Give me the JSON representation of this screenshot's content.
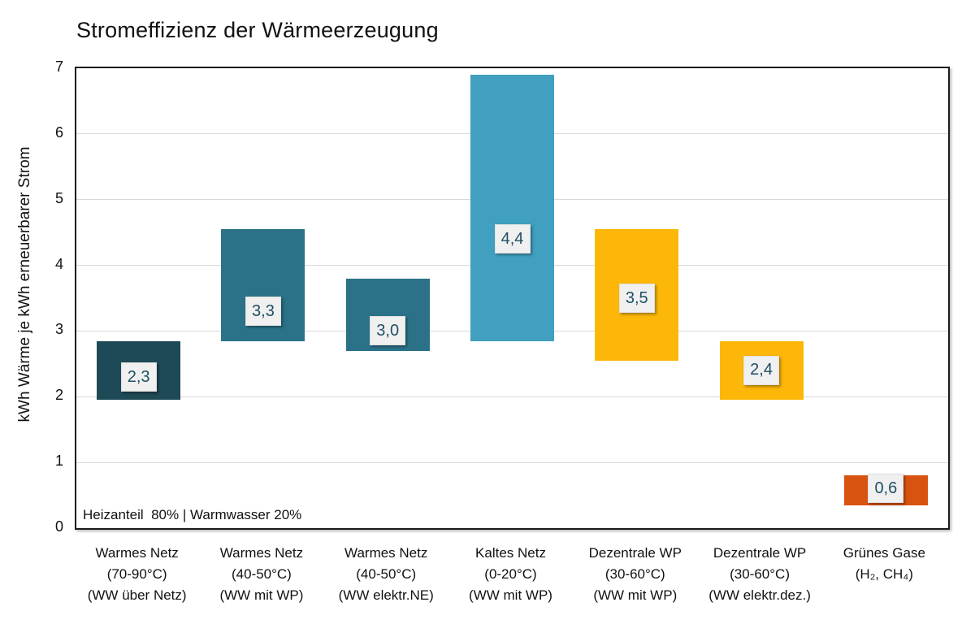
{
  "chart_data": {
    "type": "bar",
    "subtype": "floating-range-columns",
    "title": "Stromeffizienz der Wärmeerzeugung",
    "xlabel": "",
    "ylabel": "kWh Wärme je kWh erneuerbarer Strom",
    "ylim": [
      0,
      7
    ],
    "y_ticks": [
      0,
      1,
      2,
      3,
      4,
      5,
      6,
      7
    ],
    "grid": "horizontal",
    "legend": "none",
    "annotation": "Heizanteil  80% | Warmwasser 20%",
    "bars": [
      {
        "category_lines": [
          "Warmes Netz",
          "(70-90°C)",
          "(WW über Netz)"
        ],
        "range_low": 1.95,
        "range_high": 2.85,
        "value": 2.3,
        "value_label": "2,3",
        "color": "#1e4956"
      },
      {
        "category_lines": [
          "Warmes Netz",
          "(40-50°C)",
          "(WW mit WP)"
        ],
        "range_low": 2.85,
        "range_high": 4.55,
        "value": 3.3,
        "value_label": "3,3",
        "color": "#2b7289"
      },
      {
        "category_lines": [
          "Warmes Netz",
          "(40-50°C)",
          "(WW elektr.NE)"
        ],
        "range_low": 2.7,
        "range_high": 3.8,
        "value": 3.0,
        "value_label": "3,0",
        "color": "#2b7289"
      },
      {
        "category_lines": [
          "Kaltes Netz",
          "(0-20°C)",
          "(WW mit WP)"
        ],
        "range_low": 2.85,
        "range_high": 6.9,
        "value": 4.4,
        "value_label": "4,4",
        "color": "#419fc0"
      },
      {
        "category_lines": [
          "Dezentrale WP",
          "(30-60°C)",
          "(WW mit WP)"
        ],
        "range_low": 2.55,
        "range_high": 4.55,
        "value": 3.5,
        "value_label": "3,5",
        "color": "#fcb708"
      },
      {
        "category_lines": [
          "Dezentrale WP",
          "(30-60°C)",
          "(WW elektr.dez.)"
        ],
        "range_low": 1.95,
        "range_high": 2.85,
        "value": 2.4,
        "value_label": "2,4",
        "color": "#fcb708"
      },
      {
        "category_lines": [
          "Grünes Gase",
          "(H₂, CH₄)"
        ],
        "range_low": 0.35,
        "range_high": 0.8,
        "value": 0.6,
        "value_label": "0,6",
        "color": "#d95310"
      }
    ],
    "style": {
      "gridline_color": "#d9d9d9",
      "axis_border_color": "#1c1c1c",
      "value_label_bg": "#f0f0f0",
      "value_label_border": "#e0e0e0",
      "value_label_text": "#1d4f63"
    }
  }
}
